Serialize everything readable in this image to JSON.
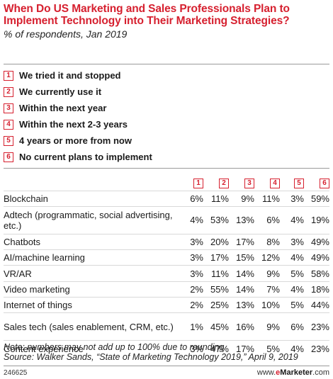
{
  "header": {
    "title": "When Do US Marketing and Sales Professionals Plan to Implement Technology into Their Marketing Strategies?",
    "subtitle": "% of respondents, Jan 2019"
  },
  "legend": [
    {
      "num": "1",
      "label": "We tried it and stopped"
    },
    {
      "num": "2",
      "label": "We currently use it"
    },
    {
      "num": "3",
      "label": "Within the next year"
    },
    {
      "num": "4",
      "label": "Within the next 2-3 years"
    },
    {
      "num": "5",
      "label": "4 years or more from now"
    },
    {
      "num": "6",
      "label": "No current plans to implement"
    }
  ],
  "chart_data": {
    "type": "table",
    "columns": [
      "1",
      "2",
      "3",
      "4",
      "5",
      "6"
    ],
    "rows": [
      {
        "label": "Blockchain",
        "values": [
          "6%",
          "11%",
          "9%",
          "11%",
          "3%",
          "59%"
        ]
      },
      {
        "label": "Adtech (programmatic, social advertising, etc.)",
        "values": [
          "4%",
          "53%",
          "13%",
          "6%",
          "4%",
          "19%"
        ]
      },
      {
        "label": "Chatbots",
        "values": [
          "3%",
          "20%",
          "17%",
          "8%",
          "3%",
          "49%"
        ]
      },
      {
        "label": "AI/machine learning",
        "values": [
          "3%",
          "17%",
          "15%",
          "12%",
          "4%",
          "49%"
        ]
      },
      {
        "label": "VR/AR",
        "values": [
          "3%",
          "11%",
          "14%",
          "9%",
          "5%",
          "58%"
        ]
      },
      {
        "label": "Video marketing",
        "values": [
          "2%",
          "55%",
          "14%",
          "7%",
          "4%",
          "18%"
        ]
      },
      {
        "label": "Internet of things",
        "values": [
          "2%",
          "25%",
          "13%",
          "10%",
          "5%",
          "44%"
        ]
      },
      {
        "label": "Sales tech (sales enablement, CRM, etc.)",
        "values": [
          "1%",
          "45%",
          "16%",
          "9%",
          "6%",
          "23%"
        ]
      },
      {
        "label": "Content experience",
        "values": [
          "3%",
          "47%",
          "17%",
          "5%",
          "4%",
          "23%"
        ]
      }
    ]
  },
  "footnote": {
    "note": "Note: numbers may not add up to 100% due to rounding",
    "source": "Source: Walker Sands, “State of Marketing Technology 2019,” April 9, 2019"
  },
  "footer": {
    "chart_id": "246625",
    "brand_prefix": "www.",
    "brand_e": "e",
    "brand_rest": "Marketer",
    "brand_suffix": ".com"
  },
  "colors": {
    "accent": "#d6202f",
    "divider": "#9a9a9a",
    "row_rule": "#d9d9d9"
  }
}
